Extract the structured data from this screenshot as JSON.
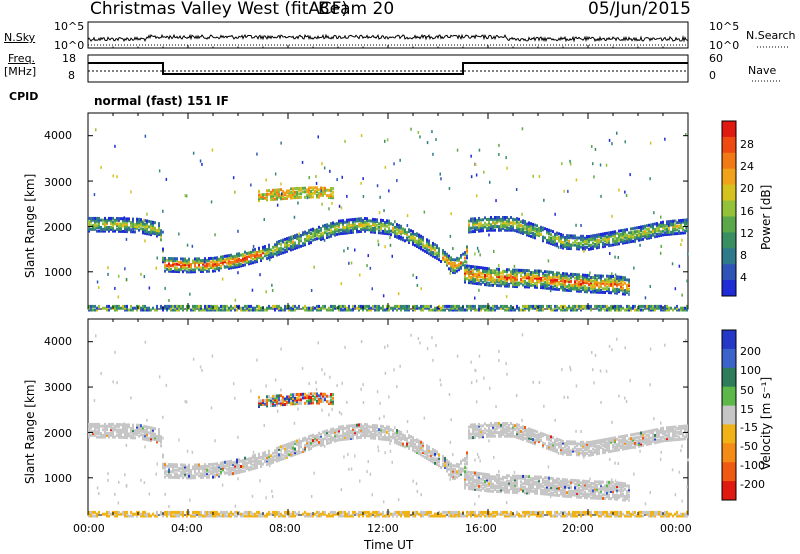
{
  "header": {
    "title": "Christmas Valley West (fitACF)",
    "beam": "Beam 20",
    "date": "05/Jun/2015"
  },
  "nsky_panel": {
    "left_label": "N.Sky",
    "right_label": "N.Search",
    "left_ticks": [
      "10^5",
      "10^0"
    ],
    "right_ticks": [
      "10^5",
      "10^0"
    ]
  },
  "freq_panel": {
    "left_label_1": "Freq.",
    "left_label_2": "[MHz]",
    "right_label": "Nave",
    "left_ticks": [
      "18",
      "8"
    ],
    "right_ticks": [
      "60",
      "0"
    ]
  },
  "cpid": {
    "label": "CPID",
    "value": "normal (fast) 151 IF"
  },
  "x_axis": {
    "label": "Time UT",
    "ticks": [
      "00:00",
      "04:00",
      "08:00",
      "12:00",
      "16:00",
      "20:00",
      "00:00"
    ]
  },
  "power_panel": {
    "ylabel": "Slant Range [km]",
    "yticks": [
      "4000",
      "3000",
      "2000",
      "1000"
    ],
    "colorbar_label": "Power [dB]",
    "colorbar_ticks": [
      "28",
      "24",
      "20",
      "16",
      "12",
      "8",
      "4"
    ]
  },
  "velocity_panel": {
    "ylabel": "Slant Range [km]",
    "yticks": [
      "4000",
      "3000",
      "2000",
      "1000"
    ],
    "colorbar_label": "Velocity [m s⁻¹]",
    "colorbar_ticks": [
      "200",
      "100",
      "50",
      "15",
      "-15",
      "-50",
      "-100",
      "-200"
    ]
  },
  "chart_data": {
    "type": "heatmap",
    "x_range_hours": [
      0,
      24
    ],
    "y_range_km": [
      180,
      4500
    ],
    "power_colors": [
      "#1f2bd6",
      "#2e54b8",
      "#2f7a8a",
      "#3a8f62",
      "#5aa84a",
      "#93c23a",
      "#d6c21e",
      "#f0a21a",
      "#f27a16",
      "#ee4a12",
      "#e01a10"
    ],
    "velocity_colors": [
      "#2437c6",
      "#3c63c9",
      "#2e7c5a",
      "#5db84a",
      "#c6c6c6",
      "#c6c6c6",
      "#f0b217",
      "#f48b16",
      "#ee5a12",
      "#e01a10"
    ],
    "echo_bands": [
      {
        "name": "main",
        "pts": [
          [
            0,
            2080
          ],
          [
            1,
            2080
          ],
          [
            2,
            2060
          ],
          [
            2.85,
            1960
          ],
          [
            3.0,
            1200
          ],
          [
            4,
            1180
          ],
          [
            5,
            1200
          ],
          [
            6,
            1300
          ],
          [
            7,
            1450
          ],
          [
            8,
            1650
          ],
          [
            9,
            1850
          ],
          [
            10,
            2020
          ],
          [
            11,
            2080
          ],
          [
            12,
            2020
          ],
          [
            13,
            1780
          ],
          [
            14,
            1450
          ],
          [
            14.6,
            1150
          ],
          [
            15.1,
            1350
          ],
          [
            15.2,
            2060
          ],
          [
            16,
            2100
          ],
          [
            17,
            2100
          ],
          [
            18,
            1900
          ],
          [
            19,
            1700
          ],
          [
            20,
            1680
          ],
          [
            21,
            1780
          ],
          [
            22,
            1880
          ],
          [
            23,
            2000
          ],
          [
            24,
            2050
          ]
        ],
        "width": 300
      },
      {
        "name": "lower",
        "pts": [
          [
            15.0,
            1000
          ],
          [
            16,
            930
          ],
          [
            17,
            900
          ],
          [
            18,
            880
          ],
          [
            19,
            820
          ],
          [
            20,
            780
          ],
          [
            21,
            760
          ],
          [
            21.6,
            720
          ]
        ],
        "width": 380
      },
      {
        "name": "upper",
        "pts": [
          [
            6.8,
            2720
          ],
          [
            7.5,
            2750
          ],
          [
            8.2,
            2780
          ],
          [
            9,
            2800
          ],
          [
            9.8,
            2780
          ]
        ],
        "width": 230
      },
      {
        "name": "near-range",
        "pts": [
          [
            0,
            230
          ],
          [
            24,
            230
          ]
        ],
        "width": 80
      }
    ]
  }
}
